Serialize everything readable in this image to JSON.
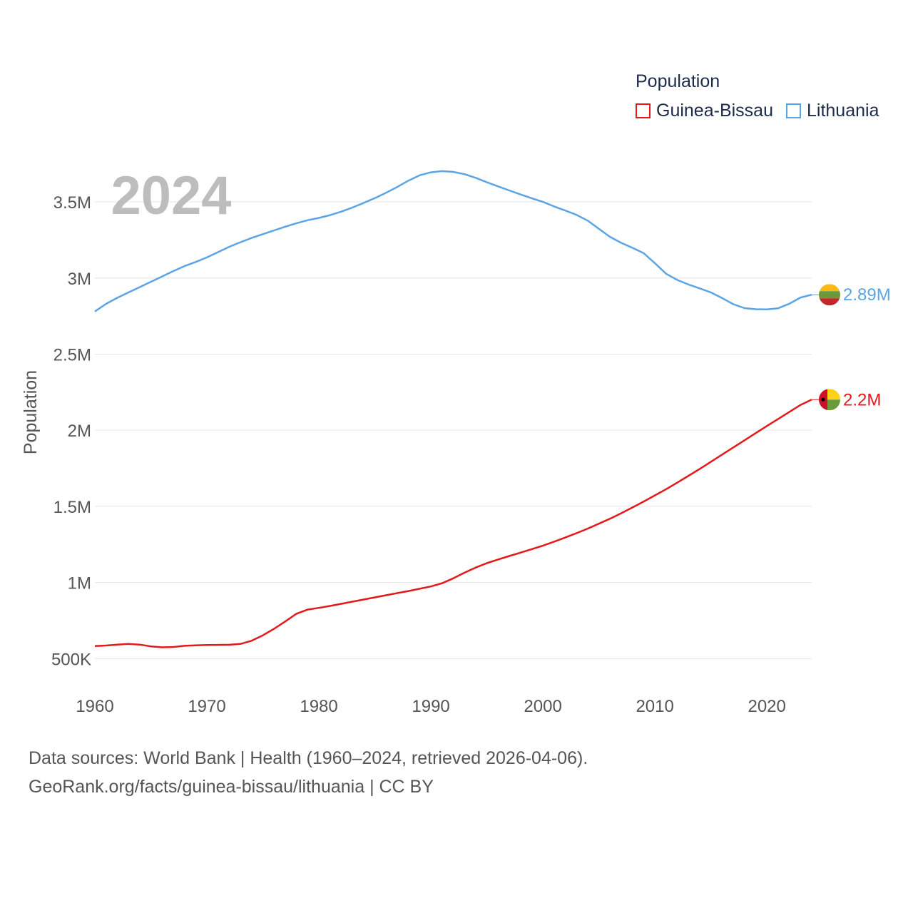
{
  "chart_data": {
    "type": "line",
    "title": "",
    "year_label": "2024",
    "ylabel": "Population",
    "xlabel": "",
    "xlim": [
      1960,
      2024
    ],
    "ylim": [
      300000,
      3950000
    ],
    "x_ticks": [
      1960,
      1970,
      1980,
      1990,
      2000,
      2010,
      2020
    ],
    "y_ticks": [
      {
        "value": 500000,
        "label": "500K"
      },
      {
        "value": 1000000,
        "label": "1M"
      },
      {
        "value": 1500000,
        "label": "1.5M"
      },
      {
        "value": 2000000,
        "label": "2M"
      },
      {
        "value": 2500000,
        "label": "2.5M"
      },
      {
        "value": 3000000,
        "label": "3M"
      },
      {
        "value": 3500000,
        "label": "3.5M"
      }
    ],
    "legend_title": "Population",
    "series": [
      {
        "name": "Guinea-Bissau",
        "color": "#e31a1c",
        "end_label": "2.2M",
        "flag": "guinea-bissau",
        "x": [
          1960,
          1961,
          1962,
          1963,
          1964,
          1965,
          1966,
          1967,
          1968,
          1969,
          1970,
          1971,
          1972,
          1973,
          1974,
          1975,
          1976,
          1977,
          1978,
          1979,
          1980,
          1981,
          1982,
          1983,
          1984,
          1985,
          1986,
          1987,
          1988,
          1989,
          1990,
          1991,
          1992,
          1993,
          1994,
          1995,
          1996,
          1997,
          1998,
          1999,
          2000,
          2001,
          2002,
          2003,
          2004,
          2005,
          2006,
          2007,
          2008,
          2009,
          2010,
          2011,
          2012,
          2013,
          2014,
          2015,
          2016,
          2017,
          2018,
          2019,
          2020,
          2021,
          2022,
          2023,
          2024
        ],
        "values": [
          582000,
          586000,
          592000,
          596000,
          592000,
          580000,
          574000,
          576000,
          584000,
          587000,
          589000,
          590000,
          591000,
          596000,
          617000,
          653000,
          696000,
          744000,
          795000,
          822000,
          833000,
          846000,
          860000,
          874000,
          888000,
          902000,
          916000,
          930000,
          944000,
          959000,
          974000,
          995000,
          1027000,
          1064000,
          1098000,
          1127000,
          1151000,
          1174000,
          1196000,
          1219000,
          1242000,
          1268000,
          1295000,
          1324000,
          1354000,
          1386000,
          1419000,
          1455000,
          1493000,
          1532000,
          1572000,
          1613000,
          1656000,
          1701000,
          1746000,
          1793000,
          1840000,
          1887000,
          1934000,
          1981000,
          2028000,
          2074000,
          2120000,
          2166000,
          2201000
        ]
      },
      {
        "name": "Lithuania",
        "color": "#5ba4e5",
        "end_label": "2.89M",
        "flag": "lithuania",
        "x": [
          1960,
          1961,
          1962,
          1963,
          1964,
          1965,
          1966,
          1967,
          1968,
          1969,
          1970,
          1971,
          1972,
          1973,
          1974,
          1975,
          1976,
          1977,
          1978,
          1979,
          1980,
          1981,
          1982,
          1983,
          1984,
          1985,
          1986,
          1987,
          1988,
          1989,
          1990,
          1991,
          1992,
          1993,
          1994,
          1995,
          1996,
          1997,
          1998,
          1999,
          2000,
          2001,
          2002,
          2003,
          2004,
          2005,
          2006,
          2007,
          2008,
          2009,
          2010,
          2011,
          2012,
          2013,
          2014,
          2015,
          2016,
          2017,
          2018,
          2019,
          2020,
          2021,
          2022,
          2023,
          2024
        ],
        "values": [
          2780000,
          2830000,
          2870000,
          2905000,
          2940000,
          2975000,
          3010000,
          3045000,
          3078000,
          3105000,
          3135000,
          3170000,
          3205000,
          3235000,
          3263000,
          3288000,
          3313000,
          3337000,
          3360000,
          3380000,
          3395000,
          3413000,
          3436000,
          3463000,
          3493000,
          3525000,
          3560000,
          3598000,
          3640000,
          3675000,
          3694000,
          3702000,
          3697000,
          3682000,
          3658000,
          3629000,
          3602000,
          3575000,
          3549000,
          3524000,
          3500000,
          3470000,
          3443000,
          3415000,
          3377000,
          3323000,
          3270000,
          3231000,
          3198000,
          3163000,
          3097000,
          3028000,
          2987000,
          2957000,
          2932000,
          2905000,
          2868000,
          2828000,
          2802000,
          2795000,
          2794000,
          2801000,
          2831000,
          2872000,
          2890000
        ]
      }
    ]
  },
  "footer": {
    "line1": "Data sources: World Bank | Health (1960–2024, retrieved 2026-04-06).",
    "line2": "GeoRank.org/facts/guinea-bissau/lithuania | CC BY"
  }
}
